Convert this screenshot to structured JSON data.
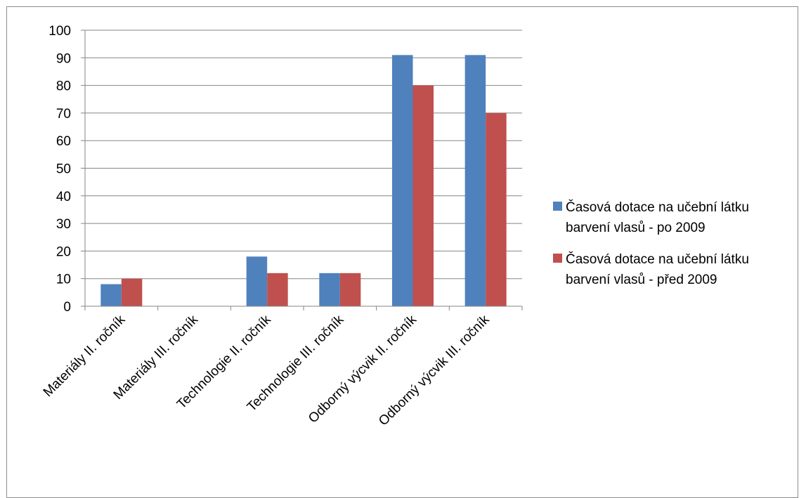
{
  "chart_data": {
    "type": "bar",
    "title": "",
    "xlabel": "",
    "ylabel": "",
    "ylim": [
      0,
      100
    ],
    "yticks": [
      0,
      10,
      20,
      30,
      40,
      50,
      60,
      70,
      80,
      90,
      100
    ],
    "grid": true,
    "legend_position": "right",
    "categories": [
      "Materiály II. ročník",
      "Materiály III. ročník",
      "Technologie II. ročník",
      "Technologie III. ročník",
      "Odborný výcvik II. ročník",
      "Odborný výcvik III. ročník"
    ],
    "series": [
      {
        "name": "Časová dotace na učební látku barvení vlasů - po 2009",
        "legend_lines": [
          "Časová dotace na učební látku",
          "barvení vlasů - po 2009"
        ],
        "color": "#4F81BD",
        "values": [
          8,
          0,
          18,
          12,
          91,
          91
        ]
      },
      {
        "name": "Časová dotace na učební látku barvení vlasů - před 2009",
        "legend_lines": [
          "Časová dotace na učební látku",
          "barvení vlasů - před 2009"
        ],
        "color": "#C0504D",
        "values": [
          10,
          0,
          12,
          12,
          80,
          70
        ]
      }
    ]
  }
}
